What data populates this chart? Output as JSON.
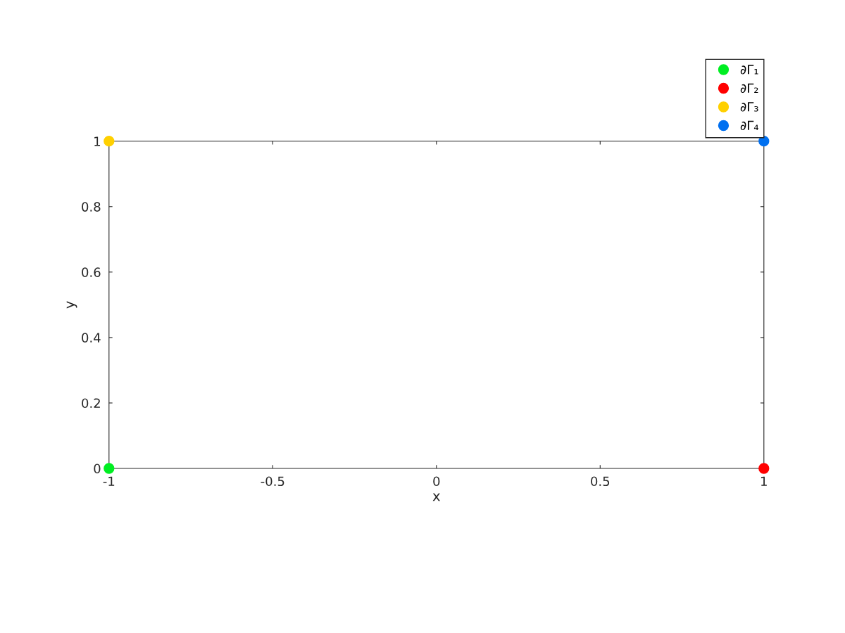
{
  "chart_data": {
    "type": "scatter",
    "xlabel": "x",
    "ylabel": "y",
    "series": [
      {
        "name": "∂Γ₁",
        "color": "#00ee22",
        "values": [
          0,
          null
        ]
      },
      {
        "name": "∂Γ₂",
        "color": "#ff0000",
        "values": [
          null,
          0
        ]
      },
      {
        "name": "∂Γ₃",
        "color": "#ffd000",
        "values": [
          1,
          null
        ]
      },
      {
        "name": "∂Γ₄",
        "color": "#0070f0",
        "values": [
          null,
          1
        ]
      }
    ],
    "x": [
      -1,
      1
    ],
    "xlim": [
      -1,
      1
    ],
    "ylim": [
      0,
      1
    ],
    "xticks": [
      {
        "value": -1,
        "label": "-1"
      },
      {
        "value": -0.5,
        "label": "-0.5"
      },
      0,
      0.5,
      1
    ],
    "yticks": [
      0,
      0.2,
      0.4,
      0.6,
      0.8,
      1
    ],
    "marker": "circle",
    "grid": false,
    "legend": "top right"
  }
}
